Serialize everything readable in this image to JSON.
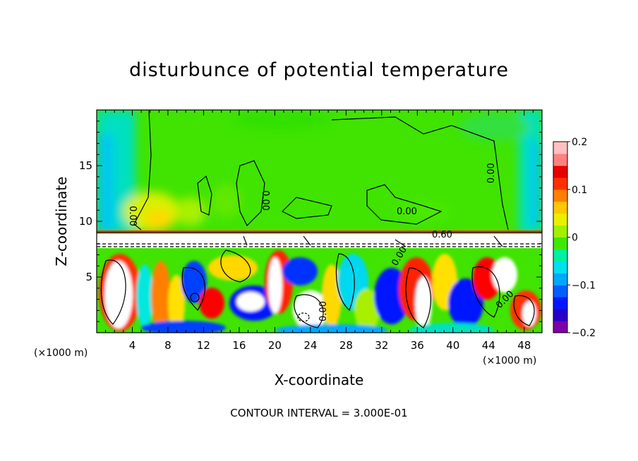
{
  "chart_data": {
    "type": "heatmap",
    "title": "disturbunce of potential temperature",
    "xlabel": "X-coordinate",
    "ylabel": "Z-coordinate",
    "x_unit_left": "(×1000 m)",
    "x_unit_right": "(×1000 m)",
    "xlim": [
      0,
      50
    ],
    "ylim": [
      0,
      20
    ],
    "x_ticks": [
      4,
      8,
      12,
      16,
      20,
      24,
      28,
      32,
      36,
      40,
      44,
      48
    ],
    "y_ticks": [
      5,
      10,
      15
    ],
    "colorbar": {
      "range": [
        -0.2,
        0.2
      ],
      "ticks": [
        "0.2",
        "0.1",
        "0",
        "−0.1",
        "−0.2"
      ],
      "tick_values": [
        0.2,
        0.1,
        0,
        -0.1,
        -0.2
      ],
      "colors": [
        "#7d00a8",
        "#2a00c8",
        "#0018ff",
        "#0060ff",
        "#00a8ff",
        "#00e0f0",
        "#00f0a0",
        "#40e800",
        "#a0f000",
        "#e8f000",
        "#ffc800",
        "#ff8000",
        "#ff3000",
        "#e80000",
        "#ff8080",
        "#ffc0c0"
      ]
    },
    "contour_labels": [
      "0.00",
      "0.00",
      "0.60",
      "0.00",
      "0.00",
      "0.00",
      "0.00",
      "0.00"
    ],
    "contour_interval_text": "CONTOUR INTERVAL = 3.000E-01"
  }
}
